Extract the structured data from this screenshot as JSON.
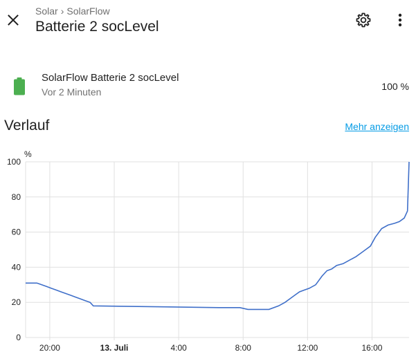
{
  "header": {
    "breadcrumb": [
      "Solar",
      "SolarFlow"
    ],
    "breadcrumb_separator": "›",
    "title": "Batterie 2 socLevel",
    "icons": [
      "close-icon",
      "gear-icon",
      "more-vert-icon"
    ]
  },
  "entity": {
    "name": "SolarFlow Batterie 2 socLevel",
    "last_changed": "Vor 2 Minuten",
    "state": "100 %",
    "icon": "battery-full-icon",
    "icon_color": "#4caf50"
  },
  "history": {
    "title": "Verlauf",
    "more_link": "Mehr anzeigen"
  },
  "chart_data": {
    "type": "line",
    "unit": "%",
    "ylim": [
      0,
      100
    ],
    "y_ticks": [
      "0",
      "20",
      "40",
      "60",
      "80",
      "100"
    ],
    "x_ticks": [
      {
        "h": 20,
        "label": "20:00",
        "bold": false
      },
      {
        "h": 24,
        "label": "13. Juli",
        "bold": true
      },
      {
        "h": 28,
        "label": "4:00",
        "bold": false
      },
      {
        "h": 32,
        "label": "8:00",
        "bold": false
      },
      {
        "h": 36,
        "label": "12:00",
        "bold": false
      },
      {
        "h": 40,
        "label": "16:00",
        "bold": false
      }
    ],
    "xlim": [
      18.5,
      42.3
    ],
    "line_color": "#3f6fc9",
    "grid": true,
    "series": [
      {
        "x": [
          18.5,
          19.2,
          19.5,
          19.8,
          20.1,
          20.4,
          20.7,
          21.0,
          21.3,
          21.6,
          21.9,
          22.2,
          22.5,
          22.7,
          30.5,
          31.8,
          32.3,
          33.6,
          34.2,
          34.6,
          34.9,
          35.2,
          35.5,
          35.8,
          36.1,
          36.5,
          36.9,
          37.2,
          37.5,
          37.8,
          38.2,
          38.6,
          39.0,
          39.3,
          39.6,
          39.9,
          40.2,
          40.6,
          41.0,
          41.4,
          41.7,
          42.0,
          42.2,
          42.3
        ],
        "y": [
          31,
          31,
          30,
          29,
          28,
          27,
          26,
          25,
          24,
          23,
          22,
          21,
          20,
          18,
          17,
          17,
          16,
          16,
          18,
          20,
          22,
          24,
          26,
          27,
          28,
          30,
          35,
          38,
          39,
          41,
          42,
          44,
          46,
          48,
          50,
          52,
          57,
          62,
          64,
          65,
          66,
          68,
          72,
          100
        ]
      }
    ]
  }
}
